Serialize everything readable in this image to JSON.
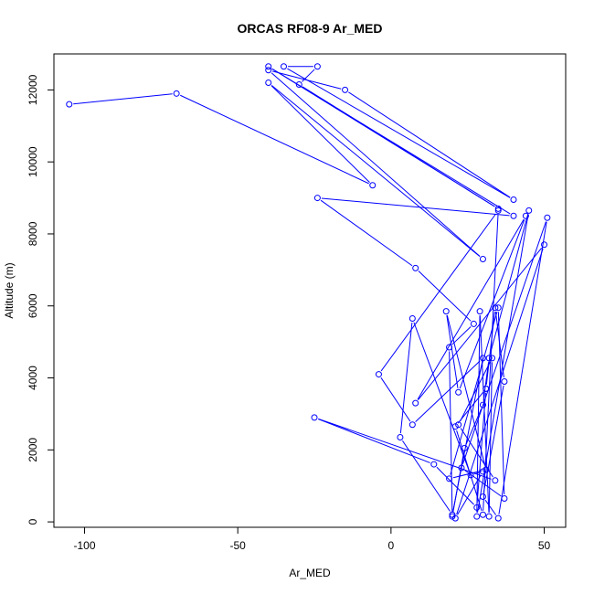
{
  "chart_data": {
    "type": "line",
    "title": "ORCAS RF08-9 Ar_MED",
    "xlabel": "Ar_MED",
    "ylabel": "Altitude (m)",
    "xlim": [
      -110,
      57
    ],
    "ylim": [
      -150,
      13000
    ],
    "xticks": [
      -100,
      -50,
      0,
      50
    ],
    "yticks": [
      0,
      2000,
      4000,
      6000,
      8000,
      10000,
      12000
    ],
    "grid": false,
    "colors": {
      "series": "#0000ff",
      "axes": "#000000"
    },
    "series": [
      {
        "marker": "open-circle",
        "points": [
          [
            -105,
            11600
          ],
          [
            -70,
            11900
          ],
          [
            -6,
            9350
          ],
          [
            -40,
            12200
          ],
          [
            30,
            7300
          ],
          [
            -40,
            12550
          ],
          [
            -15,
            12000
          ],
          [
            40,
            8950
          ],
          [
            -35,
            12650
          ],
          [
            -24,
            12650
          ],
          [
            -30,
            12150
          ],
          [
            35,
            8700
          ],
          [
            -40,
            12650
          ],
          [
            40,
            8500
          ],
          [
            -24,
            9000
          ],
          [
            8,
            7050
          ],
          [
            27,
            5500
          ],
          [
            19,
            4850
          ],
          [
            20,
            150
          ],
          [
            24,
            2050
          ],
          [
            30,
            3250
          ],
          [
            32,
            4550
          ],
          [
            45,
            8650
          ],
          [
            28,
            150
          ],
          [
            29,
            5850
          ],
          [
            32,
            150
          ],
          [
            33,
            4550
          ],
          [
            22,
            2700
          ],
          [
            34,
            1150
          ],
          [
            -25,
            2900
          ],
          [
            14,
            1600
          ],
          [
            28,
            400
          ],
          [
            31,
            3700
          ],
          [
            34,
            5950
          ],
          [
            37,
            3900
          ],
          [
            30,
            700
          ],
          [
            35,
            100
          ],
          [
            51,
            8450
          ],
          [
            23,
            1500
          ],
          [
            37,
            650
          ],
          [
            35,
            5950
          ],
          [
            19,
            1200
          ],
          [
            31,
            1450
          ],
          [
            18,
            5850
          ],
          [
            22,
            3600
          ],
          [
            44,
            8500
          ],
          [
            8,
            3300
          ],
          [
            50,
            7700
          ],
          [
            21,
            100
          ],
          [
            30,
            1400
          ],
          [
            26,
            1300
          ],
          [
            7,
            5650
          ],
          [
            3,
            2350
          ],
          [
            20,
            200
          ],
          [
            30,
            4550
          ],
          [
            7,
            2700
          ],
          [
            -4,
            4100
          ],
          [
            35,
            8650
          ],
          [
            30,
            200
          ],
          [
            21,
            2650
          ],
          [
            31,
            3700
          ]
        ]
      }
    ]
  }
}
